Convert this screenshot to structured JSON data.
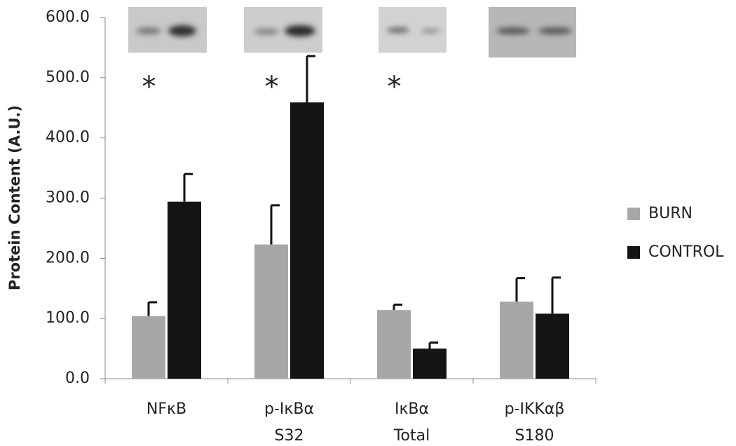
{
  "chart_data": {
    "type": "bar",
    "y_label": "Protein Content (A.U.)",
    "categories": [
      [
        "NFκB"
      ],
      [
        "p-IκBα",
        "S32"
      ],
      [
        "IκBα",
        "Total"
      ],
      [
        "p-IKKαβ",
        "S180"
      ]
    ],
    "series": [
      {
        "name": "BURN",
        "color": "#a6a8a7",
        "values": [
          104,
          223,
          114,
          128
        ],
        "errors": [
          23,
          65,
          9,
          39
        ]
      },
      {
        "name": "CONTROL",
        "color": "#141414",
        "values": [
          294,
          459,
          50,
          108
        ],
        "errors": [
          46,
          77,
          10,
          60
        ]
      }
    ],
    "significance": [
      "*",
      "*",
      "*",
      null
    ],
    "ylim": [
      0,
      600
    ],
    "yticks": [
      {
        "value": 0,
        "label": "0.0"
      },
      {
        "value": 100,
        "label": "100.0"
      },
      {
        "value": 200,
        "label": "200.0"
      },
      {
        "value": 300,
        "label": "300.0"
      },
      {
        "value": 400,
        "label": "400.0"
      },
      {
        "value": 500,
        "label": "500.0"
      },
      {
        "value": 600,
        "label": "600.0"
      }
    ],
    "legend": "right"
  }
}
